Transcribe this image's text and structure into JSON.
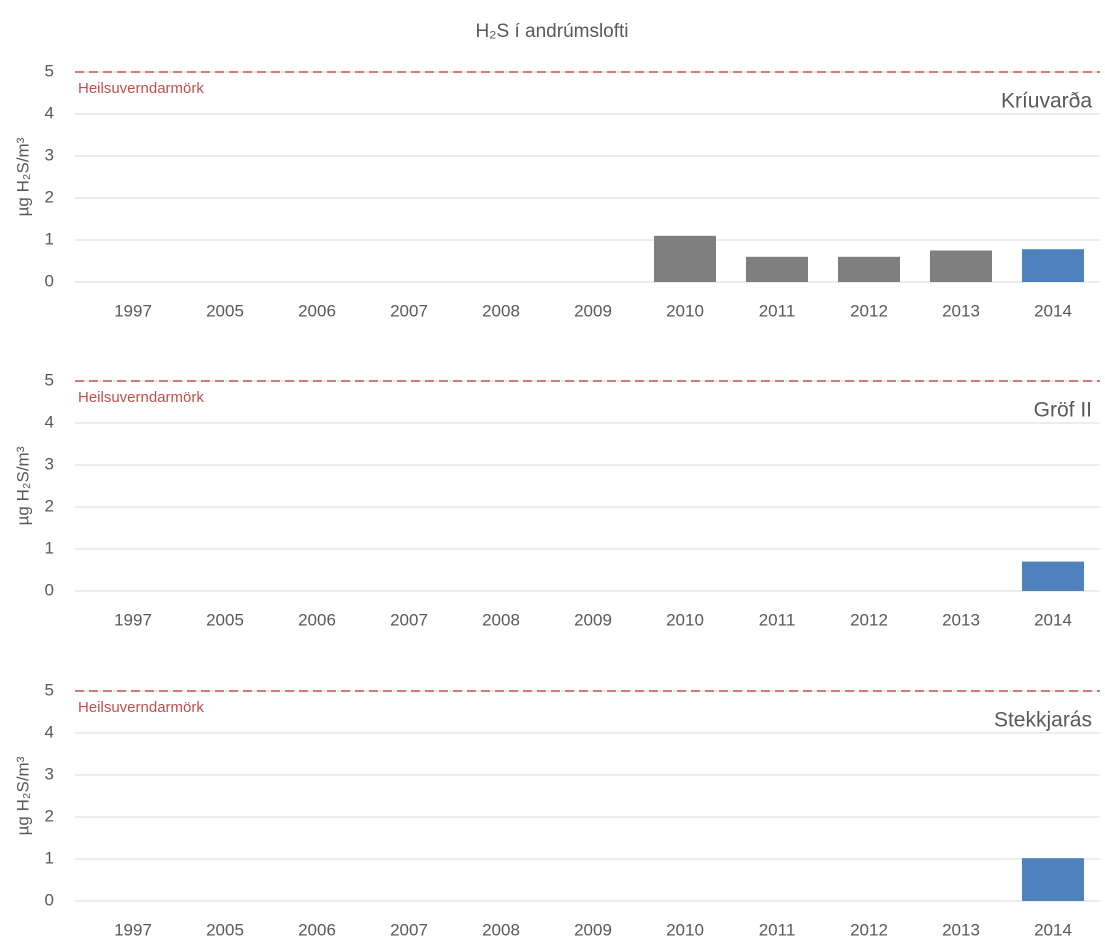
{
  "title": "H₂S í andrúmslofti",
  "chart_data": [
    {
      "type": "bar",
      "station": "Kríuvarða",
      "ylabel": "µg H₂S/m³",
      "categories": [
        "1997",
        "2005",
        "2006",
        "2007",
        "2008",
        "2009",
        "2010",
        "2011",
        "2012",
        "2013",
        "2014"
      ],
      "values": [
        null,
        null,
        null,
        null,
        null,
        null,
        1.1,
        0.6,
        0.6,
        0.75,
        0.78
      ],
      "colors": [
        null,
        null,
        null,
        null,
        null,
        null,
        "#7f7f7f",
        "#7f7f7f",
        "#7f7f7f",
        "#7f7f7f",
        "#4f81bd"
      ],
      "ylim": [
        0,
        5
      ],
      "yticks": [
        0,
        1,
        2,
        3,
        4,
        5
      ],
      "grid": true,
      "threshold": {
        "value": 5,
        "label": "Heilsuverndarmörk",
        "color": "#c0504d"
      }
    },
    {
      "type": "bar",
      "station": "Gröf II",
      "ylabel": "µg H₂S/m³",
      "categories": [
        "1997",
        "2005",
        "2006",
        "2007",
        "2008",
        "2009",
        "2010",
        "2011",
        "2012",
        "2013",
        "2014"
      ],
      "values": [
        null,
        null,
        null,
        null,
        null,
        null,
        null,
        null,
        null,
        null,
        0.7
      ],
      "colors": [
        null,
        null,
        null,
        null,
        null,
        null,
        null,
        null,
        null,
        null,
        "#4f81bd"
      ],
      "ylim": [
        0,
        5
      ],
      "yticks": [
        0,
        1,
        2,
        3,
        4,
        5
      ],
      "grid": true,
      "threshold": {
        "value": 5,
        "label": "Heilsuverndarmörk",
        "color": "#c0504d"
      }
    },
    {
      "type": "bar",
      "station": "Stekkjarás",
      "ylabel": "µg H₂S/m³",
      "categories": [
        "1997",
        "2005",
        "2006",
        "2007",
        "2008",
        "2009",
        "2010",
        "2011",
        "2012",
        "2013",
        "2014"
      ],
      "values": [
        null,
        null,
        null,
        null,
        null,
        null,
        null,
        null,
        null,
        null,
        1.02
      ],
      "colors": [
        null,
        null,
        null,
        null,
        null,
        null,
        null,
        null,
        null,
        null,
        "#4f81bd"
      ],
      "ylim": [
        0,
        5
      ],
      "yticks": [
        0,
        1,
        2,
        3,
        4,
        5
      ],
      "grid": true,
      "threshold": {
        "value": 5,
        "label": "Heilsuverndarmörk",
        "color": "#c0504d"
      }
    }
  ]
}
